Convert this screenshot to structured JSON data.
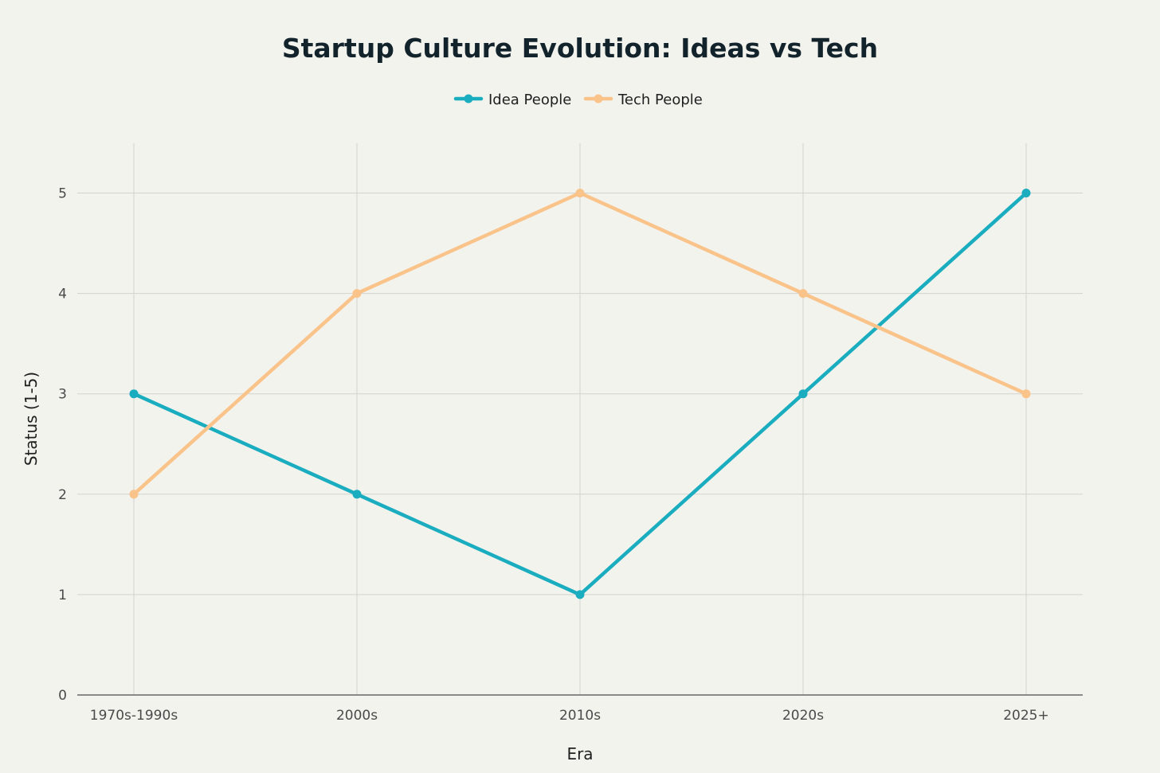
{
  "chart_data": {
    "type": "line",
    "title": "Startup Culture Evolution: Ideas vs Tech",
    "xlabel": "Era",
    "ylabel": "Status (1-5)",
    "categories": [
      "1970s-1990s",
      "2000s",
      "2010s",
      "2020s",
      "2025+"
    ],
    "y_ticks": [
      0,
      1,
      2,
      3,
      4,
      5
    ],
    "ylim": [
      0,
      5.5
    ],
    "grid": true,
    "legend_position": "top-center",
    "series": [
      {
        "name": "Idea People",
        "color": "#1AADBF",
        "values": [
          3,
          2,
          1,
          3,
          5
        ]
      },
      {
        "name": "Tech People",
        "color": "#F9C38A",
        "values": [
          2,
          4,
          5,
          4,
          3
        ]
      }
    ]
  }
}
